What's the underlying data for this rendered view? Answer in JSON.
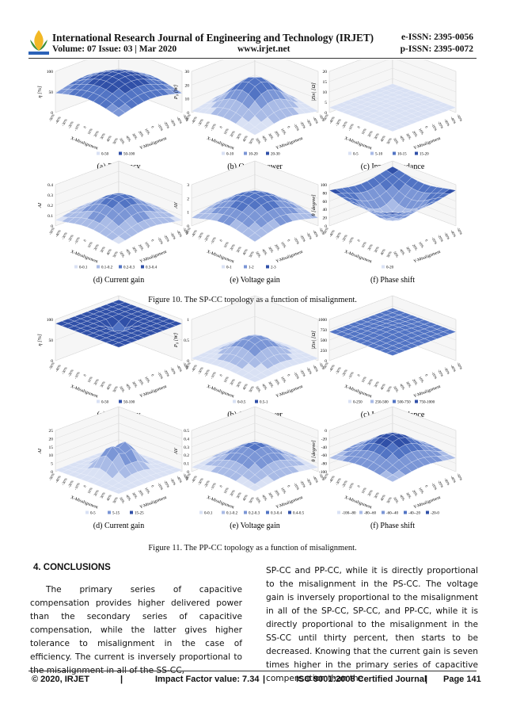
{
  "header": {
    "journal": "International Research Journal of Engineering and Technology (IRJET)",
    "e_issn": "e-ISSN: 2395-0056",
    "volume": "Volume: 07 Issue: 03 | Mar 2020",
    "website": "www.irjet.net",
    "p_issn": "p-ISSN: 2395-0072"
  },
  "axis_titles": {
    "x": "X-Misalignment",
    "y": "Y-Misalignment"
  },
  "misalignment_ticks": [
    "-50%",
    "-40%",
    "-30%",
    "-20%",
    "-10%",
    "0",
    "10%",
    "20%",
    "30%",
    "40%",
    "50%"
  ],
  "figures": [
    {
      "caption": "Figure 10. The SP-CC topology as a function of misalignment.",
      "panels": [
        {
          "label": "(a) Efficiency",
          "zlabel": "η [%]",
          "zticks": [
            "0",
            "50",
            "100"
          ],
          "legend": [
            "0-50",
            "50-100"
          ]
        },
        {
          "label": "(b) Output power",
          "zlabel": "P₀ [W]",
          "zticks": [
            "0",
            "10",
            "20",
            "30"
          ],
          "legend": [
            "0-10",
            "10-20",
            "20-30"
          ]
        },
        {
          "label": "(c) Input impedance",
          "zlabel": "|Zin| [Ω]",
          "zticks": [
            "0",
            "5",
            "10",
            "15",
            "20"
          ],
          "legend": [
            "0-5",
            "5-10",
            "10-15",
            "15-20"
          ]
        },
        {
          "label": "(d) Current gain",
          "zlabel": "AI",
          "zticks": [
            "0",
            "0.1",
            "0.2",
            "0.3",
            "0.4"
          ],
          "legend": [
            "0-0.1",
            "0.1-0.2",
            "0.2-0.3",
            "0.3-0.4"
          ]
        },
        {
          "label": "(e) Voltage gain",
          "zlabel": "AV",
          "zticks": [
            "0",
            "1",
            "2",
            "3"
          ],
          "legend": [
            "0-1",
            "1-2",
            "2-3"
          ]
        },
        {
          "label": "(f) Phase shift",
          "zlabel": "θ [degree]",
          "zticks": [
            "0",
            "20",
            "40",
            "60",
            "80",
            "100"
          ],
          "legend": [
            "0-20"
          ]
        }
      ]
    },
    {
      "caption": "Figure 11. The PP-CC topology as a function of misalignment.",
      "panels": [
        {
          "label": "(a) Efficiency",
          "zlabel": "η [%]",
          "zticks": [
            "0",
            "50",
            "100"
          ],
          "legend": [
            "0-50",
            "50-100"
          ]
        },
        {
          "label": "(b) Output power",
          "zlabel": "P₀ [W]",
          "zticks": [
            "0",
            "0.5",
            "1"
          ],
          "legend": [
            "0-0.5",
            "0.5-1"
          ]
        },
        {
          "label": "(c) Input impedance",
          "zlabel": "|Zin| [Ω]",
          "zticks": [
            "0",
            "250",
            "500",
            "750",
            "1000"
          ],
          "legend": [
            "0-250",
            "250-500",
            "500-750",
            "750-1000"
          ]
        },
        {
          "label": "(d) Current gain",
          "zlabel": "AI",
          "zticks": [
            "0",
            "5",
            "10",
            "15",
            "20",
            "25"
          ],
          "legend": [
            "0-5",
            "5-15",
            "15-25"
          ]
        },
        {
          "label": "(e) Voltage gain",
          "zlabel": "AV",
          "zticks": [
            "0",
            "0.1",
            "0.2",
            "0.3",
            "0.4",
            "0.5"
          ],
          "legend": [
            "0-0.1",
            "0.1-0.2",
            "0.2-0.3",
            "0.3-0.4",
            "0.4-0.5"
          ]
        },
        {
          "label": "(f) Phase shift",
          "zlabel": "θ [degree]",
          "zticks": [
            "-100",
            "-80",
            "-60",
            "-40",
            "-20",
            "0"
          ],
          "legend": [
            "-100--80",
            "-80--60",
            "-60--40",
            "-40--20",
            "-20-0"
          ]
        }
      ]
    }
  ],
  "section": {
    "heading": "4. CONCLUSIONS",
    "columns": [
      "The primary series of capacitive compensation provides higher delivered power than the secondary series of capacitive compensation, while the latter gives higher tolerance to misalignment in the case of efficiency. The current is inversely proportional to the misalignment in all of the SS-CC,",
      "SP-CC and PP-CC, while it is directly proportional to the misalignment in the PS-CC. The voltage gain is inversely proportional to the misalignment in all of the SP-CC, SP-CC, and PP-CC, while it is directly proportional to the misalignment in the SS-CC until thirty percent, then starts to be decreased. Knowing that the current gain is seven times higher in the primary series of capacitive compensation than the"
    ]
  },
  "footer": {
    "copyright": "© 2020, IRJET",
    "impact": "Impact Factor value: 7.34",
    "iso": "ISO 9001:2008 Certified Journal",
    "page": "Page 141"
  }
}
